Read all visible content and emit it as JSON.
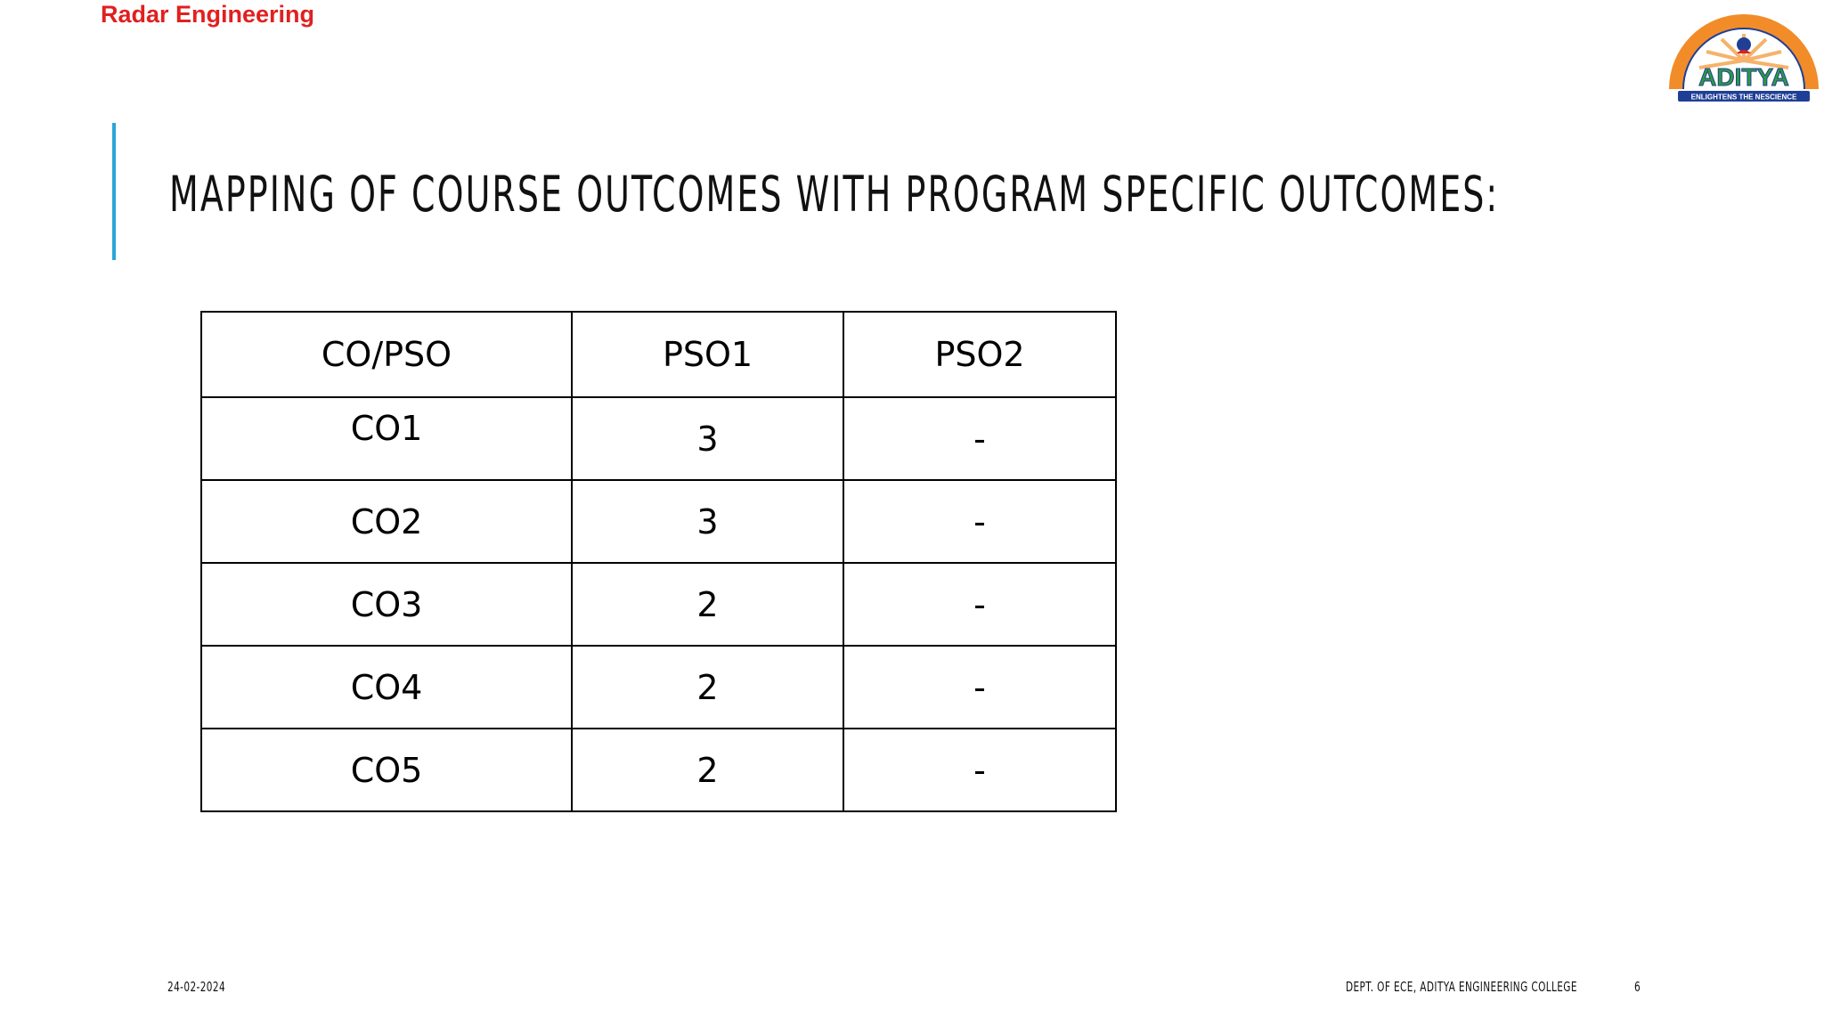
{
  "header": {
    "brand": "Radar Engineering"
  },
  "logo": {
    "name": "ADITYA",
    "tagline": "ENLIGHTENS THE NESCIENCE",
    "colors": {
      "ring": "#f28c28",
      "rays": "#f6b26b",
      "text": "#2e9a3f",
      "banner": "#1f3f96"
    }
  },
  "slide": {
    "title": "MAPPING OF COURSE OUTCOMES WITH PROGRAM SPECIFIC OUTCOMES:",
    "accent_color": "#2aa6d6"
  },
  "table": {
    "headers": [
      "CO/PSO",
      "PSO1",
      "PSO2"
    ],
    "rows": [
      [
        "CO1",
        "3",
        "-"
      ],
      [
        "CO2",
        "3",
        "-"
      ],
      [
        "CO3",
        "2",
        "-"
      ],
      [
        "CO4",
        "2",
        "-"
      ],
      [
        "CO5",
        "2",
        "-"
      ]
    ]
  },
  "footer": {
    "date": "24-02-2024",
    "department": "DEPT. OF ECE, ADITYA ENGINEERING COLLEGE",
    "page_number": "6"
  }
}
